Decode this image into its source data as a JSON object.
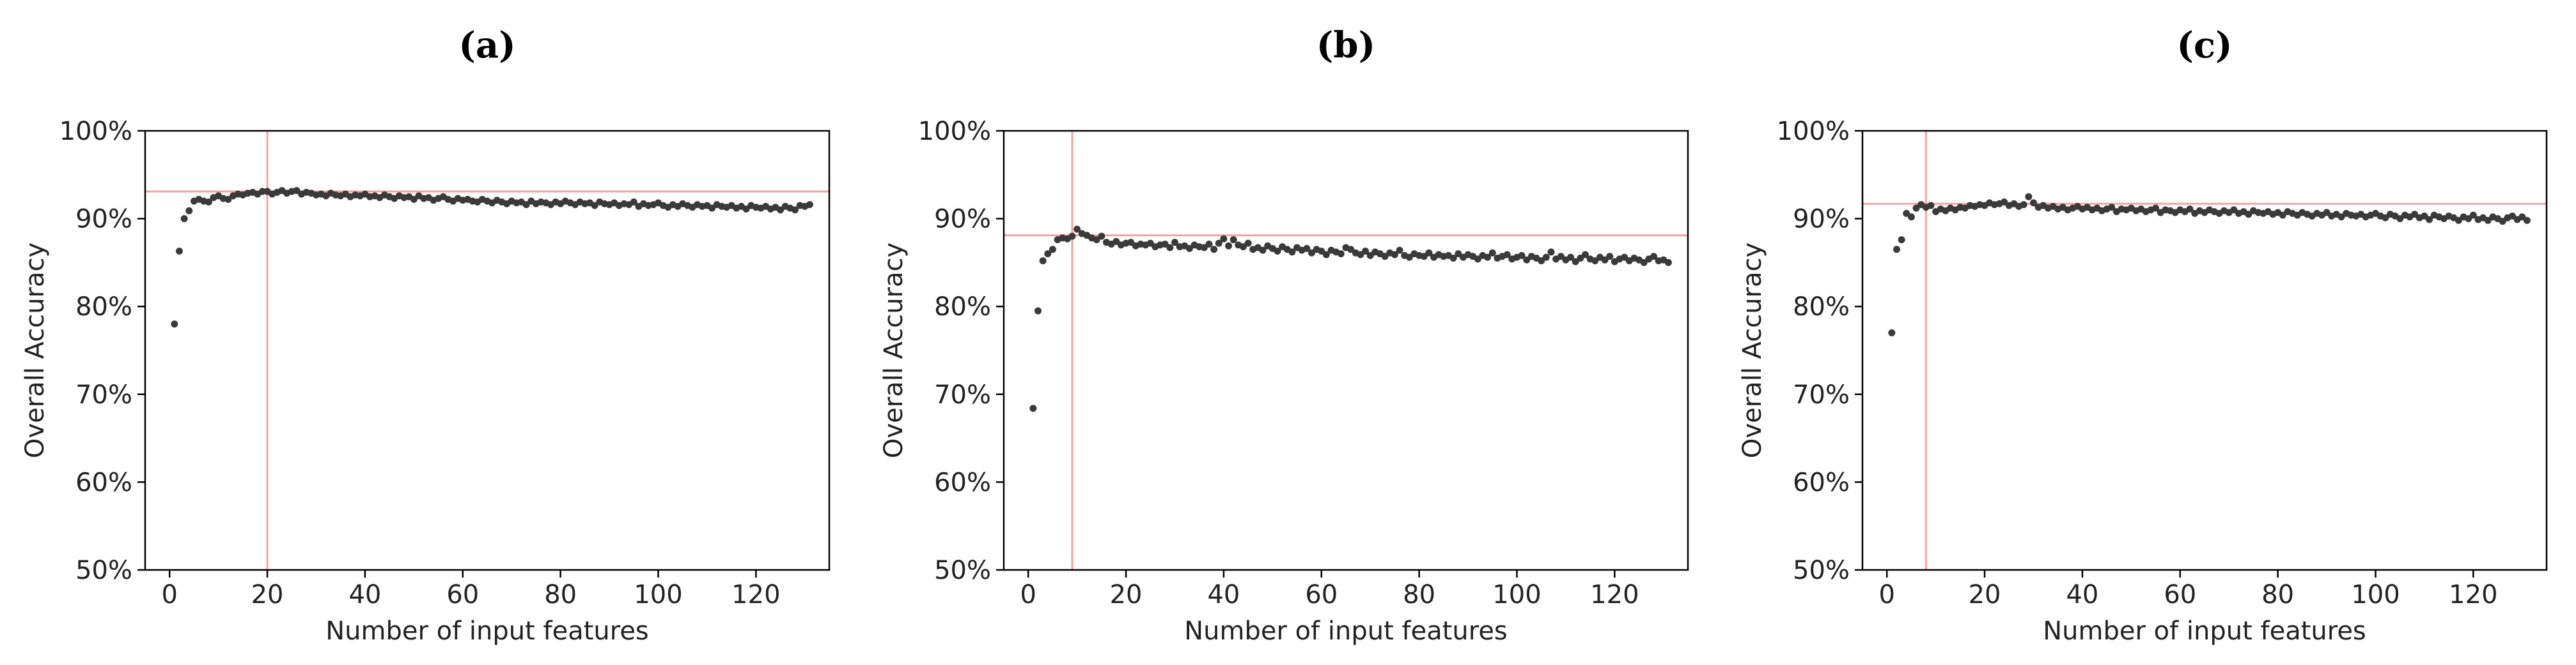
{
  "chart_data": [
    {
      "type": "scatter",
      "panel": "(a)",
      "xlabel": "Number of input features",
      "ylabel": "Overall Accuracy",
      "xlim": [
        -5,
        135
      ],
      "ylim": [
        50,
        100
      ],
      "xticks": [
        0,
        20,
        40,
        60,
        80,
        100,
        120
      ],
      "yticks": [
        50,
        60,
        70,
        80,
        90,
        100
      ],
      "ytick_labels": [
        "50%",
        "60%",
        "70%",
        "80%",
        "90%",
        "100%"
      ],
      "reference_lines": {
        "x": 20,
        "y": 93.1,
        "color": "#f4a3a3"
      },
      "x": [
        1,
        2,
        3,
        4,
        5,
        6,
        7,
        8,
        9,
        10,
        11,
        12,
        13,
        14,
        15,
        16,
        17,
        18,
        19,
        20,
        21,
        22,
        23,
        24,
        25,
        26,
        27,
        28,
        29,
        30,
        31,
        32,
        33,
        34,
        35,
        36,
        37,
        38,
        39,
        40,
        41,
        42,
        43,
        44,
        45,
        46,
        47,
        48,
        49,
        50,
        51,
        52,
        53,
        54,
        55,
        56,
        57,
        58,
        59,
        60,
        61,
        62,
        63,
        64,
        65,
        66,
        67,
        68,
        69,
        70,
        71,
        72,
        73,
        74,
        75,
        76,
        77,
        78,
        79,
        80,
        81,
        82,
        83,
        84,
        85,
        86,
        87,
        88,
        89,
        90,
        91,
        92,
        93,
        94,
        95,
        96,
        97,
        98,
        99,
        100,
        101,
        102,
        103,
        104,
        105,
        106,
        107,
        108,
        109,
        110,
        111,
        112,
        113,
        114,
        115,
        116,
        117,
        118,
        119,
        120,
        121,
        122,
        123,
        124,
        125,
        126,
        127,
        128,
        129,
        130,
        131
      ],
      "y": [
        78.0,
        86.3,
        90.0,
        90.9,
        92.0,
        92.2,
        92.0,
        91.9,
        92.4,
        92.6,
        92.3,
        92.2,
        92.6,
        92.8,
        92.7,
        92.9,
        93.0,
        92.8,
        93.1,
        93.1,
        92.8,
        93.0,
        93.2,
        92.9,
        93.1,
        93.2,
        92.8,
        93.0,
        92.9,
        92.7,
        92.8,
        92.6,
        92.9,
        92.7,
        92.6,
        92.8,
        92.5,
        92.7,
        92.6,
        92.8,
        92.5,
        92.6,
        92.4,
        92.7,
        92.5,
        92.3,
        92.6,
        92.4,
        92.5,
        92.2,
        92.6,
        92.3,
        92.4,
        92.1,
        92.3,
        92.5,
        92.2,
        92.0,
        92.3,
        92.1,
        92.2,
        92.0,
        91.9,
        92.2,
        92.0,
        91.8,
        92.1,
        91.9,
        91.7,
        92.0,
        91.8,
        91.9,
        91.6,
        92.0,
        91.7,
        91.9,
        91.8,
        91.6,
        91.9,
        91.7,
        92.0,
        91.8,
        91.6,
        91.9,
        91.7,
        91.8,
        91.5,
        91.9,
        91.7,
        91.6,
        91.8,
        91.5,
        91.7,
        91.6,
        91.9,
        91.4,
        91.7,
        91.5,
        91.6,
        91.8,
        91.5,
        91.3,
        91.6,
        91.4,
        91.7,
        91.5,
        91.3,
        91.6,
        91.4,
        91.5,
        91.2,
        91.6,
        91.4,
        91.3,
        91.5,
        91.2,
        91.4,
        91.1,
        91.5,
        91.3,
        91.2,
        91.4,
        91.1,
        91.3,
        91.0,
        91.4,
        91.2,
        91.0,
        91.5,
        91.4,
        91.6
      ]
    },
    {
      "type": "scatter",
      "panel": "(b)",
      "xlabel": "Number of input features",
      "ylabel": "Overall Accuracy",
      "xlim": [
        -5,
        135
      ],
      "ylim": [
        50,
        100
      ],
      "xticks": [
        0,
        20,
        40,
        60,
        80,
        100,
        120
      ],
      "yticks": [
        50,
        60,
        70,
        80,
        90,
        100
      ],
      "ytick_labels": [
        "50%",
        "60%",
        "70%",
        "80%",
        "90%",
        "100%"
      ],
      "reference_lines": {
        "x": 9,
        "y": 88.1,
        "color": "#f4a3a3"
      },
      "x": [
        1,
        2,
        3,
        4,
        5,
        6,
        7,
        8,
        9,
        10,
        11,
        12,
        13,
        14,
        15,
        16,
        17,
        18,
        19,
        20,
        21,
        22,
        23,
        24,
        25,
        26,
        27,
        28,
        29,
        30,
        31,
        32,
        33,
        34,
        35,
        36,
        37,
        38,
        39,
        40,
        41,
        42,
        43,
        44,
        45,
        46,
        47,
        48,
        49,
        50,
        51,
        52,
        53,
        54,
        55,
        56,
        57,
        58,
        59,
        60,
        61,
        62,
        63,
        64,
        65,
        66,
        67,
        68,
        69,
        70,
        71,
        72,
        73,
        74,
        75,
        76,
        77,
        78,
        79,
        80,
        81,
        82,
        83,
        84,
        85,
        86,
        87,
        88,
        89,
        90,
        91,
        92,
        93,
        94,
        95,
        96,
        97,
        98,
        99,
        100,
        101,
        102,
        103,
        104,
        105,
        106,
        107,
        108,
        109,
        110,
        111,
        112,
        113,
        114,
        115,
        116,
        117,
        118,
        119,
        120,
        121,
        122,
        123,
        124,
        125,
        126,
        127,
        128,
        129,
        130,
        131
      ],
      "y": [
        68.4,
        79.5,
        85.2,
        86.0,
        86.5,
        87.6,
        87.8,
        87.7,
        88.0,
        88.8,
        88.3,
        88.1,
        87.8,
        87.6,
        88.0,
        87.3,
        87.1,
        87.4,
        87.0,
        87.2,
        87.3,
        86.9,
        87.1,
        87.0,
        87.2,
        86.8,
        87.0,
        87.1,
        86.7,
        87.3,
        86.8,
        86.9,
        86.6,
        87.0,
        86.8,
        86.7,
        87.1,
        86.5,
        87.2,
        87.7,
        86.9,
        87.6,
        87.0,
        86.8,
        87.2,
        86.5,
        86.7,
        86.4,
        86.9,
        86.6,
        86.3,
        86.8,
        86.5,
        86.2,
        86.7,
        86.4,
        86.6,
        86.1,
        86.5,
        86.3,
        85.9,
        86.4,
        86.2,
        86.0,
        86.7,
        86.5,
        86.1,
        85.9,
        86.3,
        85.8,
        86.2,
        86.0,
        85.7,
        86.1,
        85.9,
        86.4,
        85.8,
        85.6,
        86.0,
        85.8,
        85.7,
        86.1,
        85.6,
        85.9,
        85.7,
        85.8,
        85.5,
        86.0,
        85.6,
        85.9,
        85.7,
        85.4,
        85.8,
        85.6,
        86.1,
        85.5,
        85.7,
        85.9,
        85.4,
        85.6,
        85.8,
        85.3,
        85.7,
        85.5,
        85.2,
        85.6,
        86.2,
        85.4,
        85.7,
        85.3,
        85.6,
        85.1,
        85.5,
        85.9,
        85.4,
        85.2,
        85.6,
        85.3,
        85.7,
        85.1,
        85.4,
        85.6,
        85.2,
        85.5,
        85.3,
        85.0,
        85.4,
        85.7,
        85.2,
        85.3,
        85.0
      ]
    },
    {
      "type": "scatter",
      "panel": "(c)",
      "xlabel": "Number of input features",
      "ylabel": "Overall Accuracy",
      "xlim": [
        -5,
        135
      ],
      "ylim": [
        50,
        100
      ],
      "xticks": [
        0,
        20,
        40,
        60,
        80,
        100,
        120
      ],
      "yticks": [
        50,
        60,
        70,
        80,
        90,
        100
      ],
      "ytick_labels": [
        "50%",
        "60%",
        "70%",
        "80%",
        "90%",
        "100%"
      ],
      "reference_lines": {
        "x": 8,
        "y": 91.7,
        "color": "#f4a3a3"
      },
      "x": [
        1,
        2,
        3,
        4,
        5,
        6,
        7,
        8,
        9,
        10,
        11,
        12,
        13,
        14,
        15,
        16,
        17,
        18,
        19,
        20,
        21,
        22,
        23,
        24,
        25,
        26,
        27,
        28,
        29,
        30,
        31,
        32,
        33,
        34,
        35,
        36,
        37,
        38,
        39,
        40,
        41,
        42,
        43,
        44,
        45,
        46,
        47,
        48,
        49,
        50,
        51,
        52,
        53,
        54,
        55,
        56,
        57,
        58,
        59,
        60,
        61,
        62,
        63,
        64,
        65,
        66,
        67,
        68,
        69,
        70,
        71,
        72,
        73,
        74,
        75,
        76,
        77,
        78,
        79,
        80,
        81,
        82,
        83,
        84,
        85,
        86,
        87,
        88,
        89,
        90,
        91,
        92,
        93,
        94,
        95,
        96,
        97,
        98,
        99,
        100,
        101,
        102,
        103,
        104,
        105,
        106,
        107,
        108,
        109,
        110,
        111,
        112,
        113,
        114,
        115,
        116,
        117,
        118,
        119,
        120,
        121,
        122,
        123,
        124,
        125,
        126,
        127,
        128,
        129,
        130,
        131
      ],
      "y": [
        77.0,
        86.5,
        87.6,
        90.6,
        90.2,
        91.2,
        91.6,
        91.3,
        91.5,
        90.8,
        91.1,
        90.9,
        91.2,
        91.0,
        91.3,
        91.2,
        91.5,
        91.4,
        91.6,
        91.5,
        91.8,
        91.6,
        91.7,
        91.9,
        91.5,
        91.7,
        91.4,
        91.6,
        92.5,
        91.8,
        91.3,
        91.5,
        91.2,
        91.4,
        91.1,
        91.3,
        91.0,
        91.2,
        91.4,
        91.1,
        91.3,
        91.0,
        91.2,
        90.9,
        91.1,
        91.3,
        90.8,
        91.1,
        91.0,
        91.2,
        90.9,
        91.1,
        90.8,
        91.0,
        91.2,
        90.7,
        91.0,
        90.9,
        90.7,
        91.0,
        90.8,
        91.1,
        90.6,
        90.9,
        90.7,
        91.0,
        90.8,
        90.6,
        90.9,
        90.7,
        91.0,
        90.6,
        90.8,
        90.5,
        90.9,
        90.7,
        90.6,
        90.8,
        90.5,
        90.7,
        90.4,
        90.8,
        90.6,
        90.4,
        90.7,
        90.5,
        90.3,
        90.6,
        90.4,
        90.7,
        90.3,
        90.5,
        90.2,
        90.6,
        90.4,
        90.3,
        90.5,
        90.2,
        90.4,
        90.6,
        90.3,
        90.1,
        90.5,
        90.3,
        90.0,
        90.4,
        90.2,
        90.5,
        90.1,
        90.3,
        89.9,
        90.4,
        90.2,
        90.0,
        90.3,
        90.1,
        89.8,
        90.2,
        90.0,
        90.4,
        89.9,
        90.1,
        89.8,
        90.2,
        90.0,
        89.7,
        90.1,
        90.3,
        89.9,
        90.2,
        89.8
      ]
    }
  ]
}
